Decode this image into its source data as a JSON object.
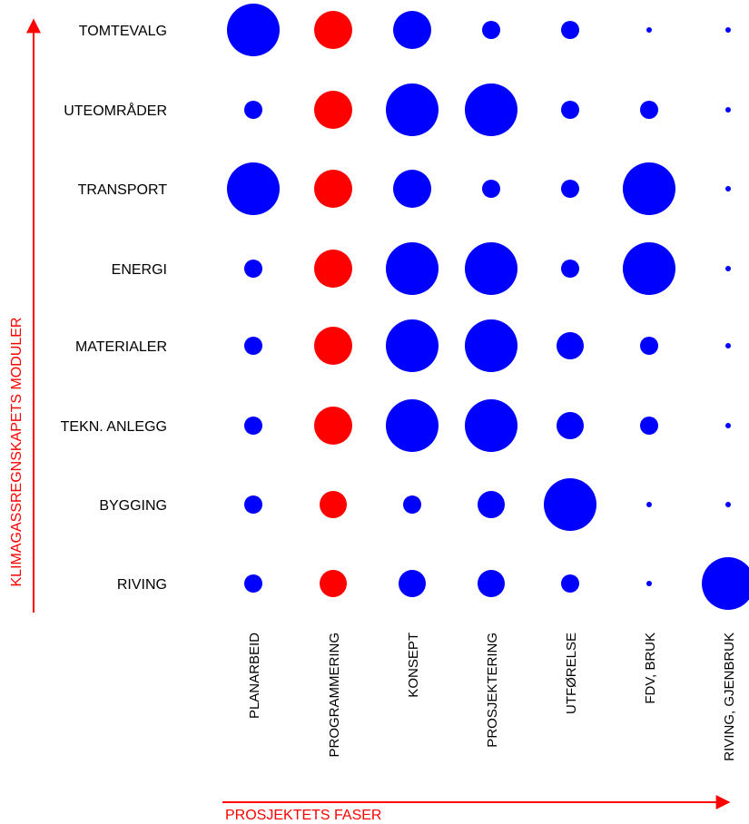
{
  "chart_data": {
    "type": "bubble",
    "title": "",
    "xlabel": "PROSJEKTETS FASER",
    "ylabel": "KLIMAGASSREGNSKAPETS MODULER",
    "rows": [
      "TOMTEVALG",
      "UTEOMRÅDER",
      "TRANSPORT",
      "ENERGI",
      "MATERIALER",
      "TEKN. ANLEGG",
      "BYGGING",
      "RIVING"
    ],
    "columns": [
      "PLANARBEID",
      "PROGRAMMERING",
      "KONSEPT",
      "PROSJEKTERING",
      "UTFØRELSE",
      "FDV, BRUK",
      "RIVING, GJENBRUK"
    ],
    "highlight_column": "PROGRAMMERING",
    "values": [
      [
        4,
        3,
        3,
        1,
        1,
        0,
        0
      ],
      [
        1,
        3,
        4,
        4,
        1,
        1,
        0
      ],
      [
        4,
        3,
        3,
        1,
        1,
        4,
        0
      ],
      [
        1,
        3,
        4,
        4,
        1,
        4,
        0
      ],
      [
        1,
        3,
        4,
        4,
        2,
        1,
        0
      ],
      [
        1,
        3,
        4,
        4,
        2,
        1,
        0
      ],
      [
        1,
        2,
        1,
        2,
        4,
        0,
        0
      ],
      [
        1,
        2,
        2,
        2,
        1,
        0,
        4
      ]
    ],
    "value_scale": "relative importance, 0 = smallest dot, 4 = largest",
    "colors": {
      "primary": "#0000ff",
      "highlight": "#ff0000",
      "axis": "#ff0000",
      "text": "#000000"
    }
  }
}
